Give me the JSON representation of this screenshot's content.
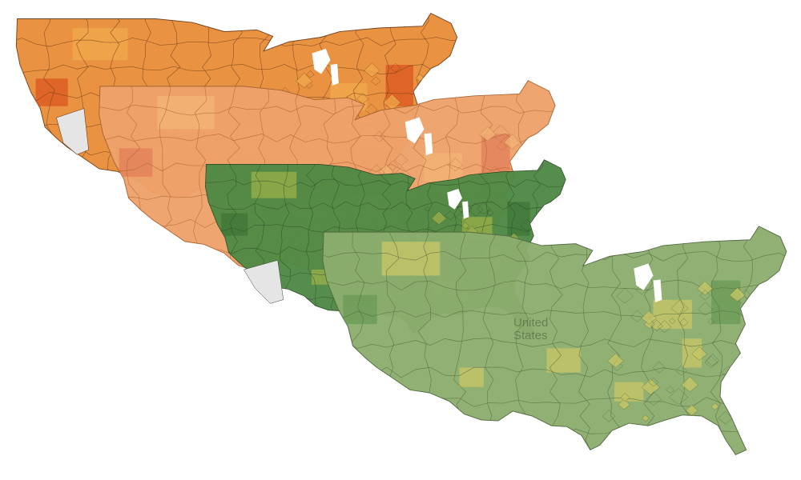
{
  "map": {
    "country_label_line1": "United",
    "country_label_line2": "States",
    "layers": [
      {
        "name": "orange-layer",
        "fill": "#e98e3a",
        "stroke": "#6b3a14",
        "shade_dark": "#d9541f",
        "shade_light": "#f0a94c"
      },
      {
        "name": "peach-layer",
        "fill": "#efa26b",
        "stroke": "#a5622f",
        "shade_dark": "#e27f5a",
        "shade_light": "#f3b576"
      },
      {
        "name": "dark-green-layer",
        "fill": "#4f8a45",
        "stroke": "#253f21",
        "shade_dark": "#3f7538",
        "shade_light": "#9cb04a"
      },
      {
        "name": "sage-green-layer",
        "fill": "#8cae6e",
        "stroke": "#52663f",
        "shade_dark": "#6a9a55",
        "shade_light": "#c9c765"
      }
    ],
    "colors": {
      "background": "#ffffff",
      "lake": "#ffffff",
      "nodata": "#e5e5e5"
    }
  }
}
